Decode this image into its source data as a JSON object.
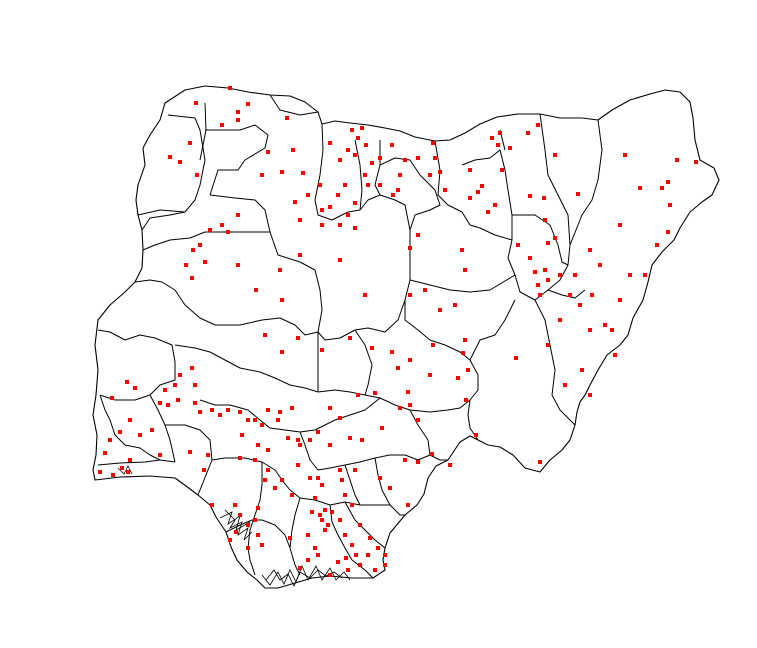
{
  "map": {
    "country": "Nigeria",
    "background": "#ffffff",
    "boundary_color": "#000000",
    "marker_color": "#ff0000",
    "marker_shape": "square",
    "marker_count": 276
  }
}
